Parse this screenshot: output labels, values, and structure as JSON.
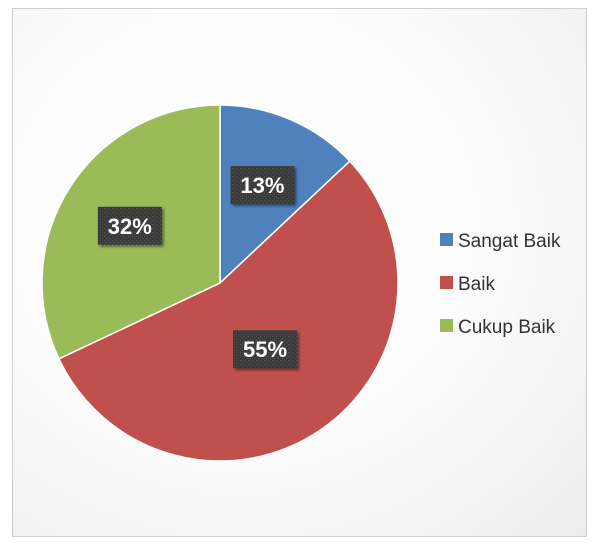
{
  "chart_data": {
    "type": "pie",
    "title": "",
    "categories": [
      "Sangat Baik",
      "Baik",
      "Cukup Baik"
    ],
    "values": [
      13,
      55,
      32
    ],
    "data_labels": [
      "13%",
      "55%",
      "32%"
    ],
    "colors": [
      "#4f81bd",
      "#c0504d",
      "#9bbb59"
    ],
    "start_angle": "12 o'clock",
    "direction": "clockwise",
    "legend_position": "right",
    "data_label_style": "white bold text on dark textured box"
  }
}
